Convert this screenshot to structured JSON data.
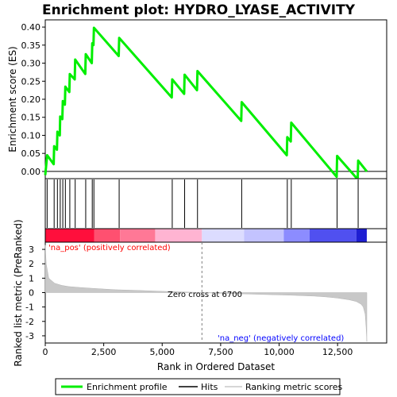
{
  "chart_data": {
    "type": "line",
    "title": "Enrichment plot: HYDRO_LYASE_ACTIVITY",
    "xlabel": "Rank in Ordered Dataset",
    "es_ylabel": "Enrichment score (ES)",
    "metric_ylabel": "Ranked list metric (PreRanked)",
    "xlim": [
      0,
      14600
    ],
    "x_ticks": [
      0,
      2500,
      5000,
      7500,
      10000,
      12500
    ],
    "x_tick_labels": [
      "0",
      "2,500",
      "5,000",
      "7,500",
      "10,000",
      "12,500"
    ],
    "es_ylim": [
      -0.02,
      0.42
    ],
    "es_ticks": [
      0.0,
      0.05,
      0.1,
      0.15,
      0.2,
      0.25,
      0.3,
      0.35,
      0.4
    ],
    "es_tick_labels": [
      "0.00",
      "0.05",
      "0.10",
      "0.15",
      "0.20",
      "0.25",
      "0.30",
      "0.35",
      "0.40"
    ],
    "metric_ylim": [
      -3.5,
      3.5
    ],
    "metric_ticks": [
      3,
      2,
      1,
      0,
      -1,
      -2,
      -3
    ],
    "metric_tick_labels": [
      "3",
      "2",
      "1",
      "0",
      "-1",
      "-2",
      "-3"
    ],
    "hits": [
      80,
      380,
      520,
      640,
      750,
      860,
      1050,
      1280,
      1730,
      2010,
      2080,
      3160,
      5430,
      5960,
      6510,
      8400,
      10350,
      10520,
      12480,
      13380
    ],
    "es_profile": {
      "x": [
        0,
        80,
        360,
        380,
        500,
        520,
        620,
        640,
        730,
        750,
        840,
        860,
        1030,
        1050,
        1260,
        1280,
        1710,
        1730,
        1990,
        2010,
        2060,
        2080,
        3140,
        3160,
        5410,
        5430,
        5940,
        5960,
        6490,
        6510,
        8380,
        8400,
        10330,
        10350,
        10500,
        10520,
        12460,
        12480,
        13360,
        13380,
        13750
      ],
      "y": [
        -0.01,
        0.045,
        0.02,
        0.07,
        0.06,
        0.11,
        0.1,
        0.152,
        0.145,
        0.195,
        0.185,
        0.235,
        0.22,
        0.27,
        0.255,
        0.31,
        0.27,
        0.325,
        0.3,
        0.355,
        0.35,
        0.398,
        0.32,
        0.37,
        0.205,
        0.255,
        0.215,
        0.268,
        0.225,
        0.278,
        0.14,
        0.192,
        0.045,
        0.095,
        0.083,
        0.135,
        -0.015,
        0.043,
        -0.022,
        0.03,
        0.0
      ]
    },
    "ranked_metric": {
      "x": [
        0,
        40,
        150,
        400,
        700,
        1000,
        1500,
        2000,
        2500,
        3000,
        4000,
        5000,
        6000,
        6700,
        7500,
        8500,
        9500,
        10500,
        11500,
        12000,
        12500,
        13000,
        13300,
        13500,
        13600,
        13680,
        13720,
        13750
      ],
      "y": [
        3.3,
        2.0,
        1.0,
        0.65,
        0.5,
        0.42,
        0.35,
        0.3,
        0.25,
        0.2,
        0.15,
        0.09,
        0.04,
        0.0,
        -0.05,
        -0.09,
        -0.14,
        -0.18,
        -0.24,
        -0.3,
        -0.38,
        -0.5,
        -0.62,
        -0.8,
        -1.0,
        -1.5,
        -2.4,
        -3.4
      ]
    },
    "zero_cross_rank": 6700,
    "annotations": {
      "pos_label": "'na_pos' (positively correlated)",
      "neg_label": "'na_neg' (negatively correlated)",
      "zero_cross_label": "Zero cross at 6700"
    },
    "legend": {
      "placement": "bottom",
      "items": [
        "Enrichment profile",
        "Hits",
        "Ranking metric scores"
      ]
    },
    "colors": {
      "es_line": "#00ee00",
      "hit_line": "#000000",
      "metric_fill": "#c8c8c8",
      "zero_line": "#7f7f7f",
      "pos_text": "#ff0000",
      "neg_text": "#0000ff",
      "frame": "#000000"
    },
    "heat_bar": [
      {
        "from": 0,
        "to": 2100,
        "color": "#ff0f3c"
      },
      {
        "from": 2100,
        "to": 3200,
        "color": "#ff5070"
      },
      {
        "from": 3200,
        "to": 4700,
        "color": "#ff7896"
      },
      {
        "from": 4700,
        "to": 6700,
        "color": "#ffb4d2"
      },
      {
        "from": 6700,
        "to": 8500,
        "color": "#dcdcff"
      },
      {
        "from": 8500,
        "to": 10200,
        "color": "#c3c3ff"
      },
      {
        "from": 10200,
        "to": 11300,
        "color": "#8c8cff"
      },
      {
        "from": 11300,
        "to": 13300,
        "color": "#5050f0"
      },
      {
        "from": 13300,
        "to": 13750,
        "color": "#1e1ed2"
      }
    ]
  }
}
